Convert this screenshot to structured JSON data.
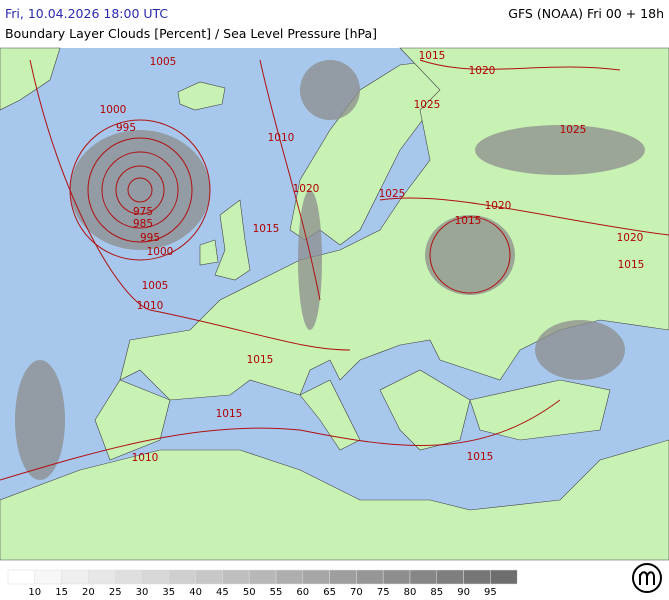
{
  "header": {
    "datetime": "Fri, 10.04.2026 18:00 UTC",
    "model": "GFS (NOAA) Fri 00 + 18h",
    "title": "Boundary Layer Clouds [Percent] / Sea Level Pressure [hPa]"
  },
  "isobar_labels": [
    1005,
    1000,
    995,
    975,
    985,
    995,
    1000,
    1005,
    1010,
    1010,
    1020,
    1015,
    1015,
    1020,
    1025,
    1025,
    1025,
    1020,
    1015,
    1020,
    1015,
    1015,
    1015,
    1010,
    1015
  ],
  "legend": {
    "labels": [
      10,
      15,
      20,
      25,
      30,
      35,
      40,
      45,
      50,
      55,
      60,
      65,
      70,
      75,
      80,
      85,
      90,
      95
    ]
  }
}
